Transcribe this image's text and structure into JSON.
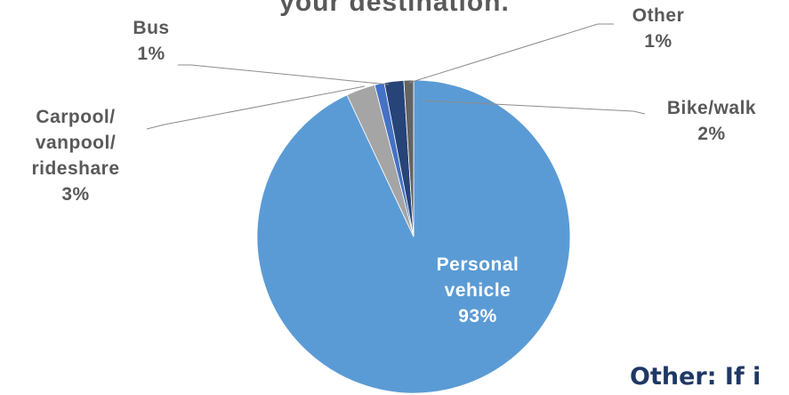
{
  "chart_data": {
    "type": "pie",
    "title": "your destination.",
    "categories": [
      "Personal vehicle",
      "Carpool/ vanpool/ rideshare",
      "Bus",
      "Bike/walk",
      "Other"
    ],
    "values": [
      93,
      3,
      1,
      2,
      1
    ],
    "value_labels": [
      "93%",
      "3%",
      "1%",
      "2%",
      "1%"
    ],
    "colors": [
      "#5b9bd5",
      "#a5a5a5",
      "#4472c4",
      "#264478",
      "#636363"
    ]
  },
  "note": "Other: If i"
}
